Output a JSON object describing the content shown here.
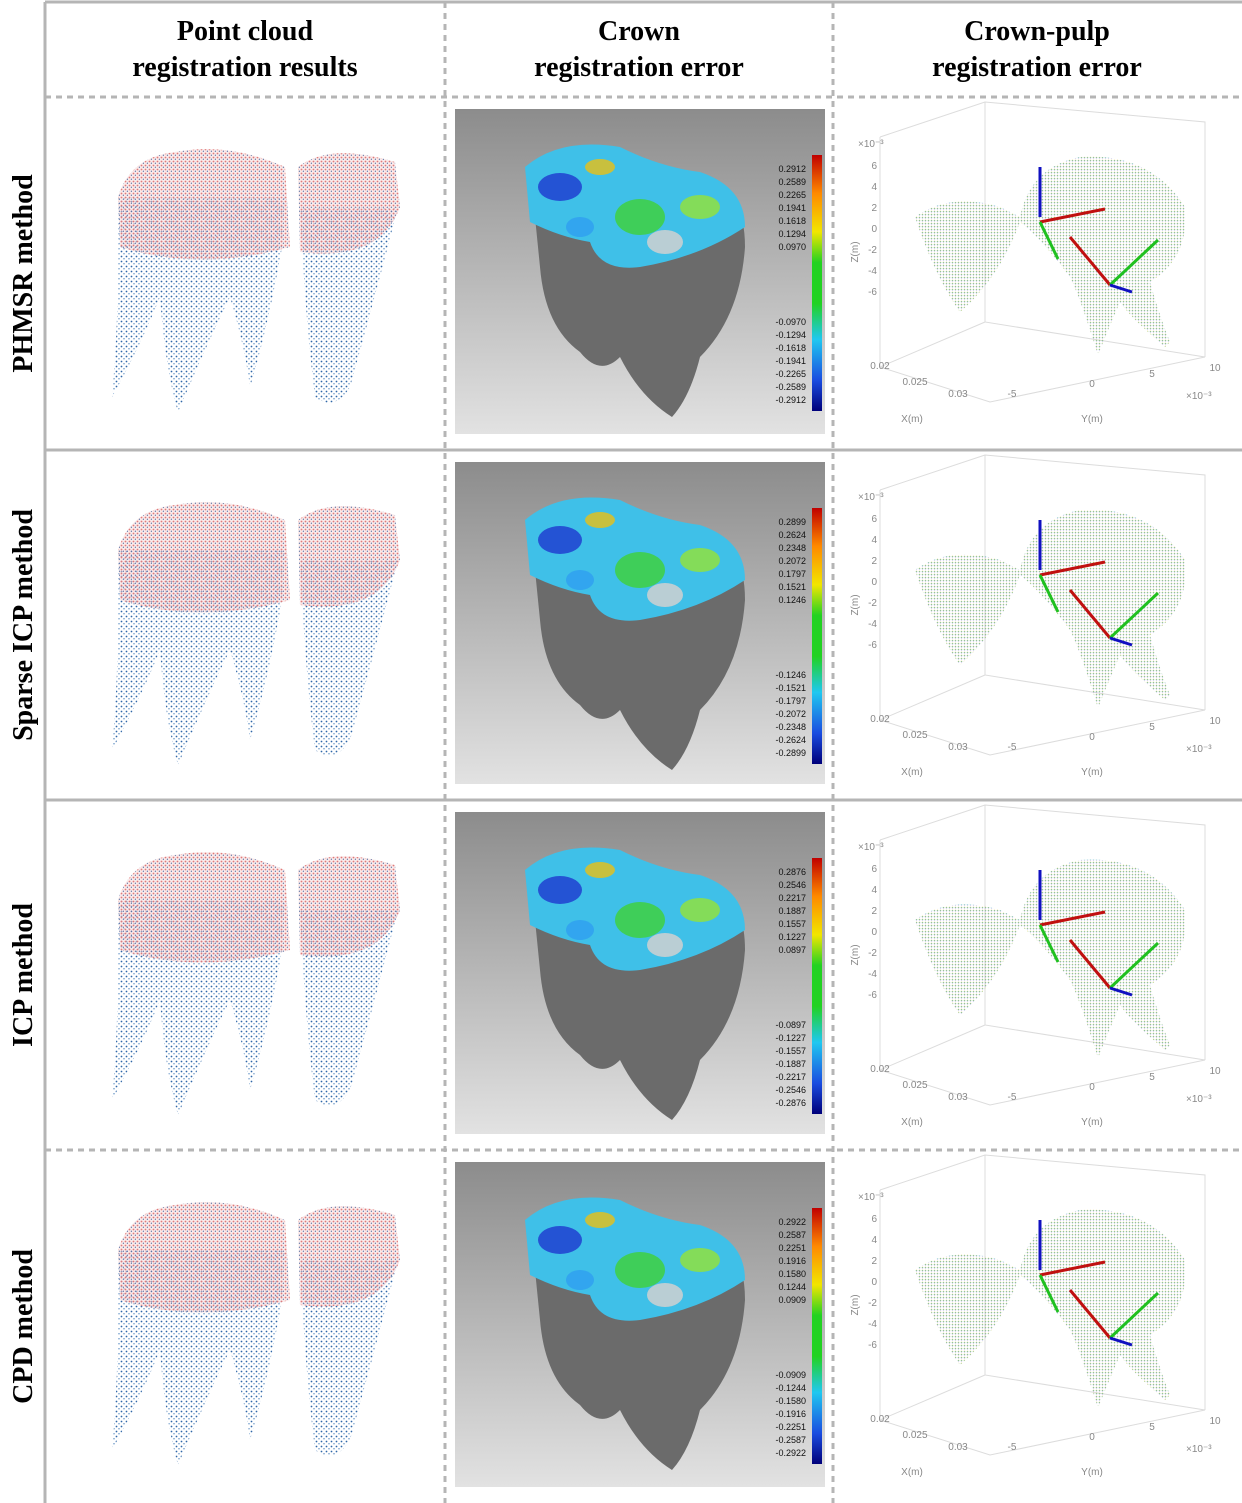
{
  "header": {
    "columns": [
      [
        "Point cloud",
        "registration results"
      ],
      [
        "Crown",
        "registration error"
      ],
      [
        "Crown-pulp",
        "registration error"
      ]
    ]
  },
  "plot_axes": {
    "exponent": "×10⁻³",
    "z_ticks": [
      "6",
      "4",
      "2",
      "0",
      "-2",
      "-4",
      "-6"
    ],
    "z_label": "Z(m)",
    "x_ticks": [
      "0.02",
      "0.025",
      "0.03"
    ],
    "x_label": "X(m)",
    "y_ticks": [
      "-5",
      "0",
      "5",
      "10"
    ],
    "y_label": "Y(m)",
    "y_exponent": "×10⁻³"
  },
  "rows": [
    {
      "label": "PHMSR method",
      "colorbar": {
        "positive": [
          "0.2912",
          "0.2589",
          "0.2265",
          "0.1941",
          "0.1618",
          "0.1294",
          "0.0970"
        ],
        "negative": [
          "-0.0970",
          "-0.1294",
          "-0.1618",
          "-0.1941",
          "-0.2265",
          "-0.2589",
          "-0.2912"
        ]
      }
    },
    {
      "label": "Sparse ICP method",
      "colorbar": {
        "positive": [
          "0.2899",
          "0.2624",
          "0.2348",
          "0.2072",
          "0.1797",
          "0.1521",
          "0.1246"
        ],
        "negative": [
          "-0.1246",
          "-0.1521",
          "-0.1797",
          "-0.2072",
          "-0.2348",
          "-0.2624",
          "-0.2899"
        ]
      }
    },
    {
      "label": "ICP method",
      "colorbar": {
        "positive": [
          "0.2876",
          "0.2546",
          "0.2217",
          "0.1887",
          "0.1557",
          "0.1227",
          "0.0897"
        ],
        "negative": [
          "-0.0897",
          "-0.1227",
          "-0.1557",
          "-0.1887",
          "-0.2217",
          "-0.2546",
          "-0.2876"
        ]
      }
    },
    {
      "label": "CPD method",
      "colorbar": {
        "positive": [
          "0.2922",
          "0.2587",
          "0.2251",
          "0.1916",
          "0.1580",
          "0.1244",
          "0.0909"
        ],
        "negative": [
          "-0.0909",
          "-0.1244",
          "-0.1580",
          "-0.1916",
          "-0.2251",
          "-0.2587",
          "-0.2922"
        ]
      }
    }
  ]
}
